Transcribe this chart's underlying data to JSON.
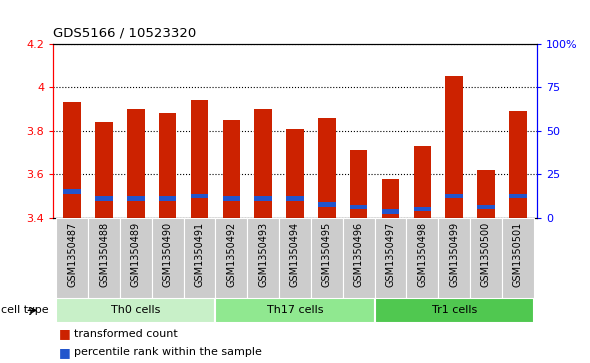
{
  "title": "GDS5166 / 10523320",
  "samples": [
    "GSM1350487",
    "GSM1350488",
    "GSM1350489",
    "GSM1350490",
    "GSM1350491",
    "GSM1350492",
    "GSM1350493",
    "GSM1350494",
    "GSM1350495",
    "GSM1350496",
    "GSM1350497",
    "GSM1350498",
    "GSM1350499",
    "GSM1350500",
    "GSM1350501"
  ],
  "red_values": [
    3.93,
    3.84,
    3.9,
    3.88,
    3.94,
    3.85,
    3.9,
    3.81,
    3.86,
    3.71,
    3.58,
    3.73,
    4.05,
    3.62,
    3.89
  ],
  "blue_values": [
    3.52,
    3.49,
    3.49,
    3.49,
    3.5,
    3.49,
    3.49,
    3.49,
    3.46,
    3.45,
    3.43,
    3.44,
    3.5,
    3.45,
    3.5
  ],
  "cell_groups": [
    {
      "label": "Th0 cells",
      "start": 0,
      "end": 5,
      "color": "#c8f0c8"
    },
    {
      "label": "Th17 cells",
      "start": 5,
      "end": 10,
      "color": "#90e890"
    },
    {
      "label": "Tr1 cells",
      "start": 10,
      "end": 15,
      "color": "#50c850"
    }
  ],
  "ymin": 3.4,
  "ymax": 4.2,
  "yticks": [
    3.4,
    3.6,
    3.8,
    4.0,
    4.2
  ],
  "y2ticks": [
    0,
    25,
    50,
    75,
    100
  ],
  "y2labels": [
    "0",
    "25",
    "50",
    "75",
    "100%"
  ],
  "bar_color": "#cc2200",
  "blue_color": "#2255cc",
  "bg_color": "#cccccc",
  "plot_bg": "#ffffff",
  "legend_red": "transformed count",
  "legend_blue": "percentile rank within the sample",
  "cell_type_label": "cell type",
  "bar_width": 0.55
}
